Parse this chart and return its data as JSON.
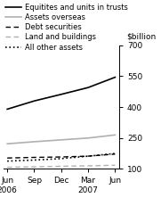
{
  "x_positions": [
    0,
    1,
    2,
    3,
    4
  ],
  "series": [
    {
      "key": "equities",
      "label": "Equitites and units in trusts",
      "values": [
        390,
        430,
        462,
        495,
        545
      ],
      "color": "#000000",
      "linestyle": "-",
      "linewidth": 1.2,
      "dashes": []
    },
    {
      "key": "assets_overseas",
      "label": "Assets overseas",
      "values": [
        222,
        232,
        241,
        250,
        265
      ],
      "color": "#b0b0b0",
      "linestyle": "-",
      "linewidth": 1.2,
      "dashes": []
    },
    {
      "key": "debt_securities",
      "label": "Debt securities",
      "values": [
        153,
        156,
        158,
        162,
        172
      ],
      "color": "#000000",
      "linestyle": "--",
      "linewidth": 1.0,
      "dashes": [
        4,
        2.5
      ]
    },
    {
      "key": "land_buildings",
      "label": "Land and buildings",
      "values": [
        108,
        110,
        113,
        115,
        118
      ],
      "color": "#b0b0b0",
      "linestyle": "--",
      "linewidth": 1.0,
      "dashes": [
        4,
        2.5
      ]
    },
    {
      "key": "all_other",
      "label": "All other assets",
      "values": [
        138,
        143,
        150,
        162,
        175
      ],
      "color": "#000000",
      "linestyle": ":",
      "linewidth": 1.2,
      "dashes": []
    }
  ],
  "ylabel": "$billion",
  "ylim": [
    100,
    700
  ],
  "yticks": [
    100,
    250,
    400,
    550,
    700
  ],
  "x_tick_labels": [
    "Jun\n2006",
    "Sep",
    "Dec",
    "Mar\n2007",
    "Jun"
  ],
  "tick_fontsize": 6.5,
  "legend_fontsize": 6.0,
  "background_color": "#ffffff"
}
